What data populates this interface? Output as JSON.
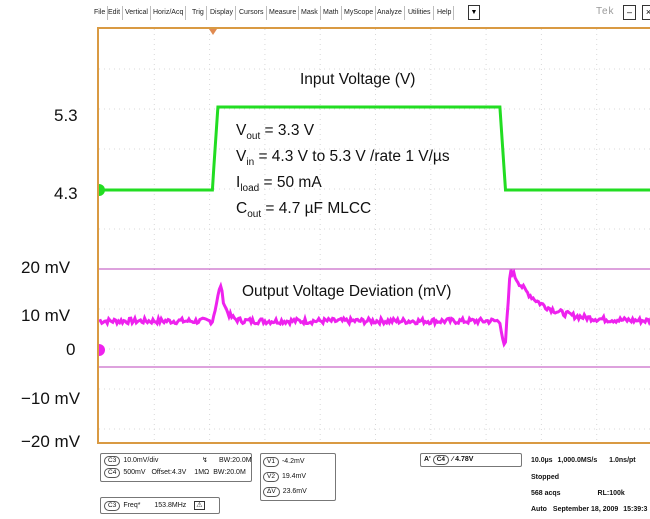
{
  "menu": {
    "items": [
      "File",
      "Edit",
      "Vertical",
      "Horiz/Acq",
      "Trig",
      "Display",
      "Cursors",
      "Measure",
      "Mask",
      "Math",
      "MyScope",
      "Analyze",
      "Utilities",
      "Help"
    ],
    "brand": "Tek"
  },
  "axis_labels": {
    "v53": "5.3",
    "v43": "4.3",
    "p20": "20 mV",
    "p10": "10 mV",
    "zero": "0",
    "m10": "−10 mV",
    "m20": "−20 mV"
  },
  "annotations": {
    "input_title": "Input Voltage (V)",
    "vout_sym": "V",
    "vout_sub": "out",
    "vout_val": " = 3.3 V",
    "vin_sym": "V",
    "vin_sub": "in",
    "vin_val": " = 4.3 V to 5.3 V /rate 1 V/µs",
    "iload_sym": "I",
    "iload_sub": "load",
    "iload_val": " = 50 mA",
    "cout_sym": "C",
    "cout_sub": "out",
    "cout_val": " = 4.7 µF MLCC",
    "output_title": "Output Voltage Deviation (mV)"
  },
  "status": {
    "c3_chip": "C3",
    "c3_scale": "10.0mV/div",
    "c3_bw": "B",
    "c3_bw_val": "W:20.0M",
    "c4_chip": "C4",
    "c4_scale": "500mV",
    "c4_offset": "Offset:4.3V",
    "c4_imp": "1MΩ",
    "c4_bw": "B",
    "c4_bw_val": "W:20.0M",
    "freq_chip": "C3",
    "freq_label": "Freq*",
    "freq_val": "153.8MHz",
    "v1_chip": "V1",
    "v1_val": "-4.2mV",
    "v2_chip": "V2",
    "v2_val": "19.4mV",
    "dv_chip": "ΔV",
    "dv_val": "23.6mV",
    "trig_chip": "A'",
    "trig_ch": "C4",
    "trig_val": "∕ 4.78V",
    "time_div": "10.0µs",
    "sample_rate": "1,000.0MS/s",
    "res": "1.0ns/pt",
    "state": "Stopped",
    "acqs": "568 acqs",
    "rl": "RL:100k",
    "mode": "Auto",
    "date": "September 18, 2009",
    "time": "15:39:3"
  },
  "colors": {
    "grid_border": "#d99a43",
    "ch4_trace": "#22dd22",
    "ch3_trace": "#ee22ee",
    "cursor_line": "#bb44bb"
  },
  "chart_data": {
    "type": "line",
    "x_unit": "µs",
    "series": [
      {
        "name": "Input Voltage (V)",
        "x": [
          0,
          10,
          20,
          30,
          40,
          50,
          60,
          70,
          80,
          90,
          100
        ],
        "y": [
          4.3,
          4.3,
          5.3,
          5.3,
          5.3,
          5.3,
          5.3,
          4.3,
          4.3,
          4.3,
          4.3
        ]
      },
      {
        "name": "Output Voltage Deviation (mV)",
        "x": [
          0,
          10,
          20,
          30,
          40,
          50,
          60,
          70,
          80,
          90,
          100
        ],
        "y": [
          0,
          0,
          7.4,
          0.4,
          0,
          0,
          0,
          -6.3,
          10.7,
          3.5,
          0.5
        ]
      }
    ]
  }
}
